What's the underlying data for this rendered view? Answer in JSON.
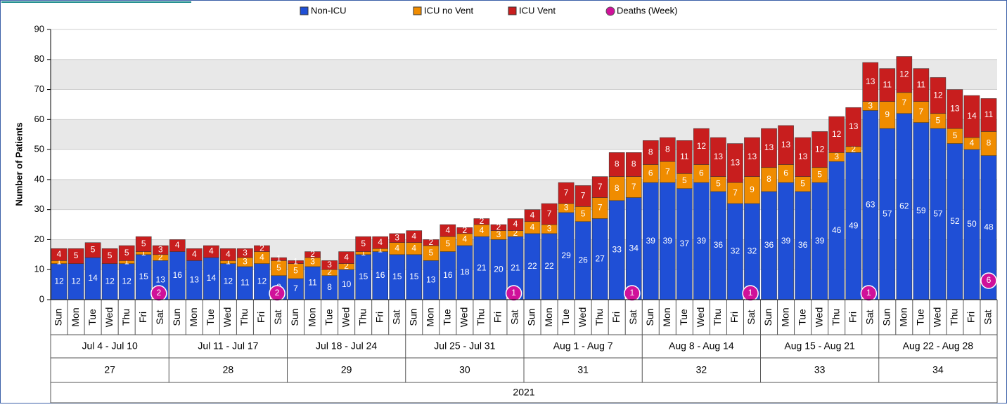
{
  "chart_data": {
    "type": "bar",
    "stacked": true,
    "y_label": "Number of Patients",
    "ylim": [
      0,
      90
    ],
    "yticks": [
      0,
      10,
      20,
      30,
      40,
      50,
      60,
      70,
      80,
      90
    ],
    "grid": true,
    "categories": [
      "Sun",
      "Mon",
      "Tue",
      "Wed",
      "Thu",
      "Fri",
      "Sat",
      "Sun",
      "Mon",
      "Tue",
      "Wed",
      "Thu",
      "Fri",
      "Sat",
      "Sun",
      "Mon",
      "Tue",
      "Wed",
      "Thu",
      "Fri",
      "Sat",
      "Sun",
      "Mon",
      "Tue",
      "Wed",
      "Thu",
      "Fri",
      "Sat",
      "Sun",
      "Mon",
      "Tue",
      "Wed",
      "Thu",
      "Fri",
      "Sat",
      "Sun",
      "Mon",
      "Tue",
      "Wed",
      "Thu",
      "Fri",
      "Sat",
      "Sun",
      "Mon",
      "Tue",
      "Wed",
      "Thu",
      "Fri",
      "Sat",
      "Sun",
      "Mon",
      "Tue",
      "Wed",
      "Thu",
      "Fri",
      "Sat"
    ],
    "weeks": [
      {
        "label": "Jul 4 - Jul 10",
        "number": "27"
      },
      {
        "label": "Jul 11 - Jul 17",
        "number": "28"
      },
      {
        "label": "Jul 18 - Jul 24",
        "number": "29"
      },
      {
        "label": "Jul 25 - Jul 31",
        "number": "30"
      },
      {
        "label": "Aug 1 - Aug 7",
        "number": "31"
      },
      {
        "label": "Aug 8 - Aug 14",
        "number": "32"
      },
      {
        "label": "Aug 15 - Aug 21",
        "number": "33"
      },
      {
        "label": "Aug 22 - Aug 28",
        "number": "34"
      }
    ],
    "year": "2021",
    "series": [
      {
        "name": "Non-ICU",
        "color": "#1f4fd6",
        "values": [
          12,
          12,
          14,
          12,
          12,
          15,
          13,
          16,
          13,
          14,
          12,
          11,
          12,
          8,
          7,
          11,
          8,
          10,
          15,
          16,
          15,
          15,
          13,
          16,
          18,
          21,
          20,
          21,
          22,
          22,
          29,
          26,
          27,
          33,
          34,
          39,
          39,
          37,
          39,
          36,
          32,
          32,
          36,
          39,
          36,
          39,
          46,
          49,
          63,
          57,
          62,
          59,
          57,
          52,
          50,
          48
        ]
      },
      {
        "name": "ICU no Vent",
        "color": "#f08c00",
        "values": [
          1,
          0,
          0,
          0,
          1,
          1,
          2,
          0,
          0,
          0,
          1,
          3,
          4,
          5,
          5,
          3,
          2,
          2,
          1,
          1,
          4,
          4,
          5,
          5,
          4,
          4,
          3,
          2,
          4,
          3,
          3,
          5,
          7,
          8,
          7,
          6,
          7,
          5,
          6,
          5,
          7,
          9,
          8,
          6,
          5,
          5,
          3,
          2,
          3,
          9,
          7,
          7,
          5,
          5,
          4,
          8
        ]
      },
      {
        "name": "ICU Vent",
        "color": "#c81e1e",
        "values": [
          4,
          5,
          5,
          5,
          5,
          5,
          3,
          4,
          4,
          4,
          4,
          3,
          2,
          1,
          1,
          2,
          3,
          4,
          5,
          4,
          3,
          4,
          2,
          4,
          2,
          2,
          2,
          4,
          4,
          7,
          7,
          7,
          7,
          8,
          8,
          8,
          8,
          11,
          12,
          13,
          13,
          13,
          13,
          13,
          13,
          12,
          12,
          13,
          13,
          11,
          12,
          11,
          12,
          13,
          14,
          11
        ]
      },
      {
        "name": "Deaths (Week)",
        "type": "marker",
        "color": "#d0119a",
        "values": [
          null,
          null,
          null,
          null,
          null,
          null,
          2,
          null,
          null,
          null,
          null,
          null,
          null,
          2,
          null,
          null,
          null,
          null,
          null,
          null,
          null,
          null,
          null,
          null,
          null,
          null,
          null,
          1,
          null,
          null,
          null,
          null,
          null,
          null,
          1,
          null,
          null,
          null,
          null,
          null,
          null,
          1,
          null,
          null,
          null,
          null,
          null,
          null,
          1,
          null,
          null,
          null,
          null,
          null,
          null,
          6
        ]
      }
    ]
  }
}
